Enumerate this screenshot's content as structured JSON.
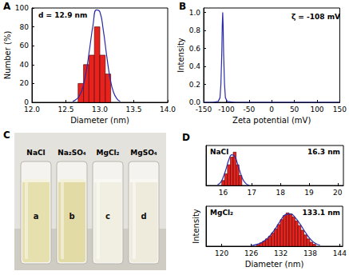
{
  "chart_data": [
    {
      "type": "histogram",
      "title": "A",
      "annotations": [
        "d = 12.9 nm"
      ],
      "xlabel": "Diameter (nm)",
      "ylabel": "Number (%)",
      "bins": [
        12.68,
        12.76,
        12.84,
        12.92,
        13.0,
        13.08,
        13.16
      ],
      "counts": [
        20,
        40,
        50,
        80,
        50,
        30
      ],
      "color": "#e8231d",
      "fit": {
        "x": [
          12.6,
          12.65,
          12.7,
          12.75,
          12.8,
          12.85,
          12.9,
          12.95,
          13.0,
          13.05,
          13.1,
          13.15,
          13.2,
          13.25,
          13.3
        ],
        "values": [
          1,
          3,
          7,
          16,
          33,
          57,
          82,
          98,
          96,
          77,
          50,
          26,
          11,
          4,
          1
        ],
        "color": "#2a2aa8"
      },
      "xlim": [
        12,
        14
      ],
      "xticks": [
        {
          "value": 12,
          "label": "12.0"
        },
        12.5,
        {
          "value": 13,
          "label": "13.0"
        },
        13.5,
        {
          "value": 14,
          "label": "14.0"
        }
      ],
      "ylim": [
        0,
        100
      ],
      "yticks": [
        0,
        20,
        40,
        60,
        80,
        100
      ],
      "grid": false
    },
    {
      "type": "line",
      "title": "B",
      "annotations": [
        "ζ = -108 mV"
      ],
      "xlabel": "Zeta potential (mV)",
      "ylabel": "Intensity",
      "x": [
        -150,
        -130,
        -118,
        -114,
        -112,
        -110,
        -109,
        -108,
        -107,
        -106,
        -104,
        -102,
        -98,
        -80,
        0,
        80,
        150
      ],
      "values": [
        0,
        0,
        0.01,
        0.05,
        0.2,
        0.55,
        0.85,
        1.0,
        0.85,
        0.55,
        0.2,
        0.05,
        0.01,
        0,
        0,
        0,
        0
      ],
      "color": "#2a2aa8",
      "xlim": [
        -150,
        150
      ],
      "xticks": [
        -150,
        -100,
        -50,
        0,
        50,
        100,
        150
      ],
      "ylim": [
        0,
        1.05
      ],
      "yticks": [
        {
          "value": 0,
          "label": "0.0"
        },
        0.2,
        0.4,
        0.6,
        0.8,
        {
          "value": 1,
          "label": "1.0"
        }
      ],
      "grid": false
    },
    {
      "type": "histogram",
      "title": "D",
      "annotations": [
        "NaCl",
        "16.3 nm"
      ],
      "bins": [
        15.95,
        16.05,
        16.15,
        16.25,
        16.35,
        16.45,
        16.55,
        16.65
      ],
      "counts": [
        0.15,
        0.35,
        0.62,
        0.85,
        1.0,
        0.62,
        0.3
      ],
      "color": "#e8231d",
      "fit": {
        "x": [
          15.8,
          15.9,
          16.0,
          16.1,
          16.2,
          16.3,
          16.4,
          16.5,
          16.6,
          16.7,
          16.8,
          16.9
        ],
        "values": [
          0.02,
          0.08,
          0.25,
          0.5,
          0.78,
          0.92,
          0.88,
          0.65,
          0.38,
          0.16,
          0.05,
          0.01
        ],
        "color": "#2a2aa8"
      },
      "xlim": [
        15.4,
        20.2
      ],
      "xticks": [
        16,
        17,
        18,
        19,
        20
      ],
      "ylim": [
        0,
        1.2
      ],
      "tick_labels": "x",
      "grid": false
    },
    {
      "type": "histogram",
      "annotations": [
        "MgCl₂",
        "133.1 nm"
      ],
      "xlabel": "Diameter (nm)",
      "ylabel": "Intensity",
      "bins": [
        127.1,
        127.7,
        128.3,
        128.9,
        129.5,
        130.1,
        130.7,
        131.3,
        131.9,
        132.5,
        133.1,
        133.7,
        134.3,
        134.9,
        135.5,
        136.1,
        136.7,
        137.3,
        137.9,
        138.5,
        139.1
      ],
      "counts": [
        0.05,
        0.1,
        0.15,
        0.22,
        0.3,
        0.4,
        0.52,
        0.65,
        0.8,
        0.92,
        1.0,
        0.97,
        0.88,
        0.76,
        0.62,
        0.48,
        0.34,
        0.22,
        0.12,
        0.06
      ],
      "color": "#e8231d",
      "fit": {
        "x": [
          126,
          127,
          128,
          129,
          130,
          131,
          132,
          133,
          134,
          135,
          136,
          137,
          138,
          139,
          140
        ],
        "values": [
          0.02,
          0.05,
          0.1,
          0.2,
          0.35,
          0.55,
          0.78,
          0.95,
          0.97,
          0.85,
          0.65,
          0.42,
          0.22,
          0.09,
          0.03
        ],
        "color": "#2a2aa8"
      },
      "xlim": [
        116.8,
        144.6
      ],
      "xticks": [
        120,
        126,
        132,
        138,
        144
      ],
      "ylim": [
        0,
        1.2
      ],
      "tick_labels": "x",
      "grid": false
    }
  ],
  "photo": {
    "panel": "C",
    "vials": [
      {
        "label": "NaCl",
        "letter": "a",
        "color": "#e6dfae"
      },
      {
        "label": "Na₂SO₄",
        "letter": "b",
        "color": "#e3dba6"
      },
      {
        "label": "MgCl₂",
        "letter": "c",
        "color": "#f1eee2"
      },
      {
        "label": "MgSO₄",
        "letter": "d",
        "color": "#efebdc"
      }
    ]
  }
}
